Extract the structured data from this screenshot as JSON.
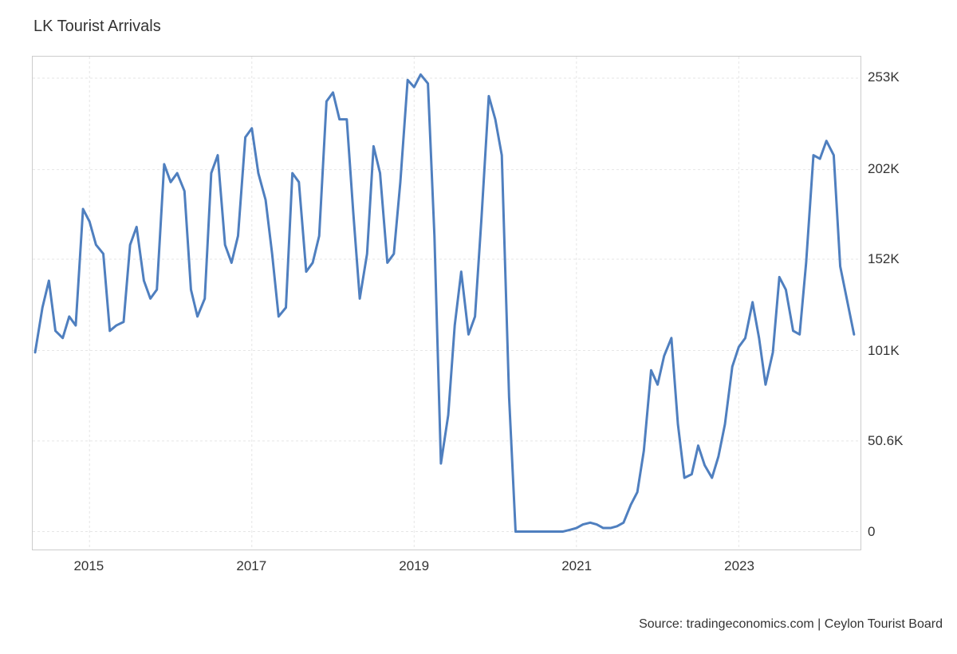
{
  "chart": {
    "type": "line",
    "title": "LK Tourist Arrivals",
    "source": "Source: tradingeconomics.com | Ceylon Tourist Board",
    "title_fontsize": 20,
    "axis_fontsize": 17,
    "source_fontsize": 16,
    "text_color": "#333333",
    "background_color": "#ffffff",
    "plot_border_color": "#cccccc",
    "grid_color": "#e6e6e6",
    "grid_dash": "3,3",
    "line_color": "#4f7fbf",
    "line_width": 3,
    "x_axis": {
      "min": 2014.3,
      "max": 2024.5,
      "ticks": [
        2015,
        2017,
        2019,
        2021,
        2023
      ],
      "tick_labels": [
        "2015",
        "2017",
        "2019",
        "2021",
        "2023"
      ]
    },
    "y_axis": {
      "min": -10,
      "max": 265,
      "ticks": [
        0,
        50.6,
        101,
        152,
        202,
        253
      ],
      "tick_labels": [
        "0",
        "50.6K",
        "101K",
        "152K",
        "202K",
        "253K"
      ]
    },
    "series": [
      {
        "x": 2014.33,
        "y": 100
      },
      {
        "x": 2014.42,
        "y": 125
      },
      {
        "x": 2014.5,
        "y": 140
      },
      {
        "x": 2014.58,
        "y": 112
      },
      {
        "x": 2014.67,
        "y": 108
      },
      {
        "x": 2014.75,
        "y": 120
      },
      {
        "x": 2014.83,
        "y": 115
      },
      {
        "x": 2014.92,
        "y": 180
      },
      {
        "x": 2015.0,
        "y": 173
      },
      {
        "x": 2015.08,
        "y": 160
      },
      {
        "x": 2015.17,
        "y": 155
      },
      {
        "x": 2015.25,
        "y": 112
      },
      {
        "x": 2015.33,
        "y": 115
      },
      {
        "x": 2015.42,
        "y": 117
      },
      {
        "x": 2015.5,
        "y": 160
      },
      {
        "x": 2015.58,
        "y": 170
      },
      {
        "x": 2015.67,
        "y": 140
      },
      {
        "x": 2015.75,
        "y": 130
      },
      {
        "x": 2015.83,
        "y": 135
      },
      {
        "x": 2015.92,
        "y": 205
      },
      {
        "x": 2016.0,
        "y": 195
      },
      {
        "x": 2016.08,
        "y": 200
      },
      {
        "x": 2016.17,
        "y": 190
      },
      {
        "x": 2016.25,
        "y": 135
      },
      {
        "x": 2016.33,
        "y": 120
      },
      {
        "x": 2016.42,
        "y": 130
      },
      {
        "x": 2016.5,
        "y": 200
      },
      {
        "x": 2016.58,
        "y": 210
      },
      {
        "x": 2016.67,
        "y": 160
      },
      {
        "x": 2016.75,
        "y": 150
      },
      {
        "x": 2016.83,
        "y": 165
      },
      {
        "x": 2016.92,
        "y": 220
      },
      {
        "x": 2017.0,
        "y": 225
      },
      {
        "x": 2017.08,
        "y": 200
      },
      {
        "x": 2017.17,
        "y": 185
      },
      {
        "x": 2017.25,
        "y": 155
      },
      {
        "x": 2017.33,
        "y": 120
      },
      {
        "x": 2017.42,
        "y": 125
      },
      {
        "x": 2017.5,
        "y": 200
      },
      {
        "x": 2017.58,
        "y": 195
      },
      {
        "x": 2017.67,
        "y": 145
      },
      {
        "x": 2017.75,
        "y": 150
      },
      {
        "x": 2017.83,
        "y": 165
      },
      {
        "x": 2017.92,
        "y": 240
      },
      {
        "x": 2018.0,
        "y": 245
      },
      {
        "x": 2018.08,
        "y": 230
      },
      {
        "x": 2018.17,
        "y": 230
      },
      {
        "x": 2018.25,
        "y": 178
      },
      {
        "x": 2018.33,
        "y": 130
      },
      {
        "x": 2018.42,
        "y": 155
      },
      {
        "x": 2018.5,
        "y": 215
      },
      {
        "x": 2018.58,
        "y": 200
      },
      {
        "x": 2018.67,
        "y": 150
      },
      {
        "x": 2018.75,
        "y": 155
      },
      {
        "x": 2018.83,
        "y": 195
      },
      {
        "x": 2018.92,
        "y": 252
      },
      {
        "x": 2019.0,
        "y": 248
      },
      {
        "x": 2019.08,
        "y": 255
      },
      {
        "x": 2019.17,
        "y": 250
      },
      {
        "x": 2019.25,
        "y": 165
      },
      {
        "x": 2019.33,
        "y": 38
      },
      {
        "x": 2019.42,
        "y": 65
      },
      {
        "x": 2019.5,
        "y": 115
      },
      {
        "x": 2019.58,
        "y": 145
      },
      {
        "x": 2019.67,
        "y": 110
      },
      {
        "x": 2019.75,
        "y": 120
      },
      {
        "x": 2019.83,
        "y": 175
      },
      {
        "x": 2019.92,
        "y": 243
      },
      {
        "x": 2020.0,
        "y": 230
      },
      {
        "x": 2020.08,
        "y": 210
      },
      {
        "x": 2020.17,
        "y": 75
      },
      {
        "x": 2020.25,
        "y": 0
      },
      {
        "x": 2020.33,
        "y": 0
      },
      {
        "x": 2020.42,
        "y": 0
      },
      {
        "x": 2020.5,
        "y": 0
      },
      {
        "x": 2020.58,
        "y": 0
      },
      {
        "x": 2020.67,
        "y": 0
      },
      {
        "x": 2020.75,
        "y": 0
      },
      {
        "x": 2020.83,
        "y": 0
      },
      {
        "x": 2020.92,
        "y": 1
      },
      {
        "x": 2021.0,
        "y": 2
      },
      {
        "x": 2021.08,
        "y": 4
      },
      {
        "x": 2021.17,
        "y": 5
      },
      {
        "x": 2021.25,
        "y": 4
      },
      {
        "x": 2021.33,
        "y": 2
      },
      {
        "x": 2021.42,
        "y": 2
      },
      {
        "x": 2021.5,
        "y": 3
      },
      {
        "x": 2021.58,
        "y": 5
      },
      {
        "x": 2021.67,
        "y": 15
      },
      {
        "x": 2021.75,
        "y": 22
      },
      {
        "x": 2021.83,
        "y": 45
      },
      {
        "x": 2021.92,
        "y": 90
      },
      {
        "x": 2022.0,
        "y": 82
      },
      {
        "x": 2022.08,
        "y": 98
      },
      {
        "x": 2022.17,
        "y": 108
      },
      {
        "x": 2022.25,
        "y": 60
      },
      {
        "x": 2022.33,
        "y": 30
      },
      {
        "x": 2022.42,
        "y": 32
      },
      {
        "x": 2022.5,
        "y": 48
      },
      {
        "x": 2022.58,
        "y": 37
      },
      {
        "x": 2022.67,
        "y": 30
      },
      {
        "x": 2022.75,
        "y": 42
      },
      {
        "x": 2022.83,
        "y": 60
      },
      {
        "x": 2022.92,
        "y": 92
      },
      {
        "x": 2023.0,
        "y": 103
      },
      {
        "x": 2023.08,
        "y": 108
      },
      {
        "x": 2023.17,
        "y": 128
      },
      {
        "x": 2023.25,
        "y": 108
      },
      {
        "x": 2023.33,
        "y": 82
      },
      {
        "x": 2023.42,
        "y": 100
      },
      {
        "x": 2023.5,
        "y": 142
      },
      {
        "x": 2023.58,
        "y": 135
      },
      {
        "x": 2023.67,
        "y": 112
      },
      {
        "x": 2023.75,
        "y": 110
      },
      {
        "x": 2023.83,
        "y": 150
      },
      {
        "x": 2023.92,
        "y": 210
      },
      {
        "x": 2024.0,
        "y": 208
      },
      {
        "x": 2024.08,
        "y": 218
      },
      {
        "x": 2024.17,
        "y": 210
      },
      {
        "x": 2024.25,
        "y": 148
      },
      {
        "x": 2024.42,
        "y": 110
      }
    ]
  }
}
